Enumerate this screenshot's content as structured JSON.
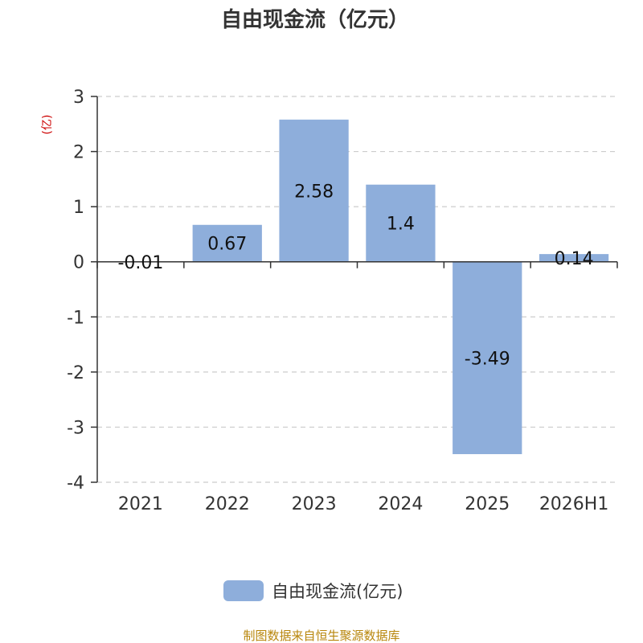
{
  "chart_data": {
    "type": "bar",
    "title": "自由现金流（亿元）",
    "unit_label": "(亿)",
    "categories": [
      "2021",
      "2022",
      "2023",
      "2024",
      "2025",
      "2026H1"
    ],
    "series": [
      {
        "name": "自由现金流(亿元)",
        "values": [
          -0.01,
          0.67,
          2.58,
          1.4,
          -3.49,
          0.14
        ]
      }
    ],
    "data_labels": [
      "-0.01",
      "0.67",
      "2.58",
      "1.4",
      "-3.49",
      "0.14"
    ],
    "y_ticks": [
      "3",
      "2",
      "1",
      "0",
      "-1",
      "-2",
      "-3",
      "-4"
    ],
    "ylim": [
      -4,
      3
    ],
    "grid": true,
    "legend_position": "bottom",
    "bar_color": "#8eaedb",
    "source": "制图数据来自恒生聚源数据库"
  }
}
